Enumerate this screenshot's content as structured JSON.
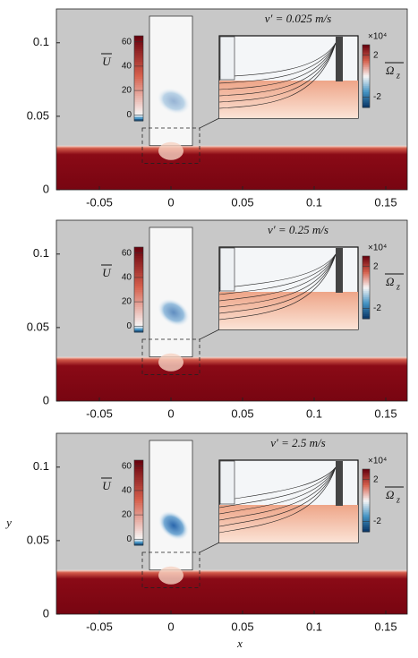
{
  "chart_data": [
    {
      "type": "contour",
      "annotation": "v′ = 0.025 m/s",
      "xlim": [
        -0.08,
        0.165
      ],
      "xticks": [
        -0.05,
        0,
        0.05,
        0.1,
        0.15
      ],
      "ylim": [
        0,
        0.123
      ],
      "yticks": [
        0,
        0.05,
        0.1
      ],
      "colorbar": {
        "label": "U",
        "clim": [
          -5,
          65
        ],
        "ticks": [
          0,
          20,
          40,
          60
        ]
      },
      "inset_colorbar": {
        "label": "Ω",
        "subscript": "z",
        "scale": "×10⁴",
        "clim": [
          -3,
          3
        ],
        "ticks": [
          2,
          -2
        ]
      }
    },
    {
      "type": "contour",
      "annotation": "v′ = 0.25 m/s",
      "xlim": [
        -0.08,
        0.165
      ],
      "xticks": [
        -0.05,
        0,
        0.05,
        0.1,
        0.15
      ],
      "ylim": [
        0,
        0.123
      ],
      "yticks": [
        0,
        0.05,
        0.1
      ],
      "colorbar": {
        "label": "U",
        "clim": [
          -5,
          65
        ],
        "ticks": [
          0,
          20,
          40,
          60
        ]
      },
      "inset_colorbar": {
        "label": "Ω",
        "subscript": "z",
        "scale": "×10⁴",
        "clim": [
          -3,
          3
        ],
        "ticks": [
          2,
          -2
        ]
      },
      "ylabel": "y"
    },
    {
      "type": "contour",
      "annotation": "v′ = 2.5 m/s",
      "xlim": [
        -0.08,
        0.165
      ],
      "xticks": [
        -0.05,
        0,
        0.05,
        0.1,
        0.15
      ],
      "ylim": [
        0,
        0.123
      ],
      "yticks": [
        0,
        0.05,
        0.1
      ],
      "colorbar": {
        "label": "U",
        "clim": [
          -5,
          65
        ],
        "ticks": [
          0,
          20,
          40,
          60
        ]
      },
      "inset_colorbar": {
        "label": "Ω",
        "subscript": "z",
        "scale": "×10⁴",
        "clim": [
          -3,
          3
        ],
        "ticks": [
          2,
          -2
        ]
      },
      "xlabel": "x"
    }
  ]
}
